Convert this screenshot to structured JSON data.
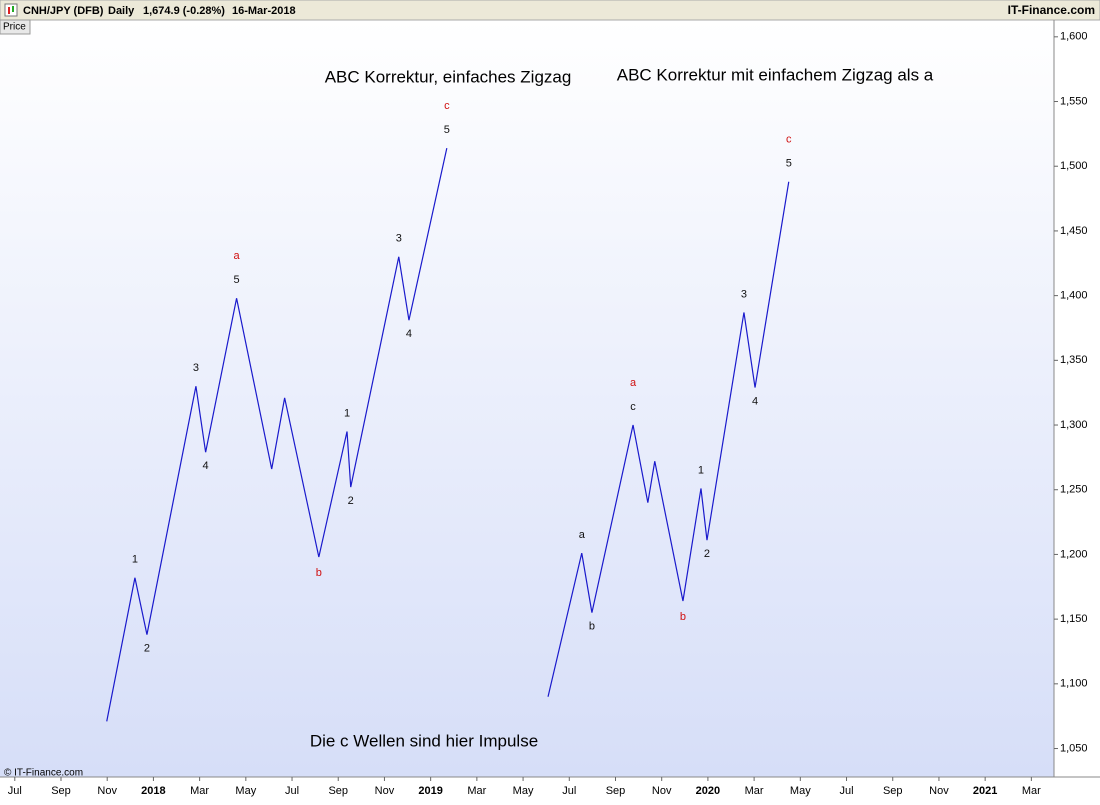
{
  "header": {
    "symbol": "CNH/JPY (DFB)",
    "interval": "Daily",
    "quote": "1,674.9 (-0.28%)",
    "date": "16-Mar-2018",
    "brand": "IT-Finance.com"
  },
  "panel_label": "Price",
  "copyright": "© IT-Finance.com",
  "chart_data": {
    "type": "line",
    "annotations": [
      "ABC Korrektur, einfaches Zigzag",
      "ABC Korrektur mit einfachem Zigzag als a",
      "Die c Wellen sind hier Impulse"
    ],
    "xlim": [
      -0.32,
      22.49
    ],
    "xticks": [
      {
        "value": 0,
        "label": "Jul"
      },
      {
        "value": 1,
        "label": "Sep"
      },
      {
        "value": 2,
        "label": "Nov"
      },
      {
        "value": 3,
        "label": "2018"
      },
      {
        "value": 4,
        "label": "Mar"
      },
      {
        "value": 5,
        "label": "May"
      },
      {
        "value": 6,
        "label": "Jul"
      },
      {
        "value": 7,
        "label": "Sep"
      },
      {
        "value": 8,
        "label": "Nov"
      },
      {
        "value": 9,
        "label": "2019"
      },
      {
        "value": 10,
        "label": "Mar"
      },
      {
        "value": 11,
        "label": "May"
      },
      {
        "value": 12,
        "label": "Jul"
      },
      {
        "value": 13,
        "label": "Sep"
      },
      {
        "value": 14,
        "label": "Nov"
      },
      {
        "value": 15,
        "label": "2020"
      },
      {
        "value": 16,
        "label": "Mar"
      },
      {
        "value": 17,
        "label": "May"
      },
      {
        "value": 18,
        "label": "Jul"
      },
      {
        "value": 19,
        "label": "Sep"
      },
      {
        "value": 20,
        "label": "Nov"
      },
      {
        "value": 21,
        "label": "2021"
      },
      {
        "value": 22,
        "label": "Mar"
      }
    ],
    "ylim": [
      1028,
      1613
    ],
    "yticks": [
      {
        "value": 1050,
        "label": "1,050"
      },
      {
        "value": 1100,
        "label": "1,100"
      },
      {
        "value": 1150,
        "label": "1,150"
      },
      {
        "value": 1200,
        "label": "1,200"
      },
      {
        "value": 1250,
        "label": "1,250"
      },
      {
        "value": 1300,
        "label": "1,300"
      },
      {
        "value": 1350,
        "label": "1,350"
      },
      {
        "value": 1400,
        "label": "1,400"
      },
      {
        "value": 1450,
        "label": "1,450"
      },
      {
        "value": 1500,
        "label": "1,500"
      },
      {
        "value": 1550,
        "label": "1,550"
      },
      {
        "value": 1600,
        "label": "1,600"
      }
    ],
    "series": [
      {
        "color": "#1a1acc",
        "x": [
          1.99,
          2.6,
          2.86,
          3.92,
          4.13,
          4.8,
          5.56,
          5.84,
          6.58,
          7.19,
          7.27,
          8.31,
          8.53,
          9.35
        ],
        "values": [
          1071,
          1182,
          1138,
          1330,
          1279,
          1398,
          1266,
          1321,
          1198,
          1295,
          1252,
          1430,
          1381,
          1514
        ],
        "labels": [
          null,
          "1",
          "2",
          "3",
          "4",
          "5",
          null,
          null,
          null,
          "1",
          "2",
          "3",
          "4",
          "5"
        ],
        "wave_labels": [
          null,
          null,
          null,
          null,
          null,
          "a",
          null,
          null,
          "b",
          null,
          null,
          null,
          null,
          "c"
        ]
      },
      {
        "color": "#1a1acc",
        "x": [
          11.54,
          12.27,
          12.49,
          13.38,
          13.7,
          13.85,
          14.46,
          14.85,
          14.98,
          15.78,
          16.02,
          16.75
        ],
        "values": [
          1090,
          1201,
          1155,
          1300,
          1240,
          1272,
          1164,
          1251,
          1211,
          1387,
          1329,
          1488
        ],
        "labels": [
          null,
          "a",
          "b",
          "c",
          null,
          null,
          null,
          "1",
          "2",
          "3",
          "4",
          "5"
        ],
        "wave_labels": [
          null,
          null,
          null,
          "a",
          null,
          null,
          "b",
          null,
          null,
          null,
          null,
          "c"
        ]
      }
    ]
  }
}
